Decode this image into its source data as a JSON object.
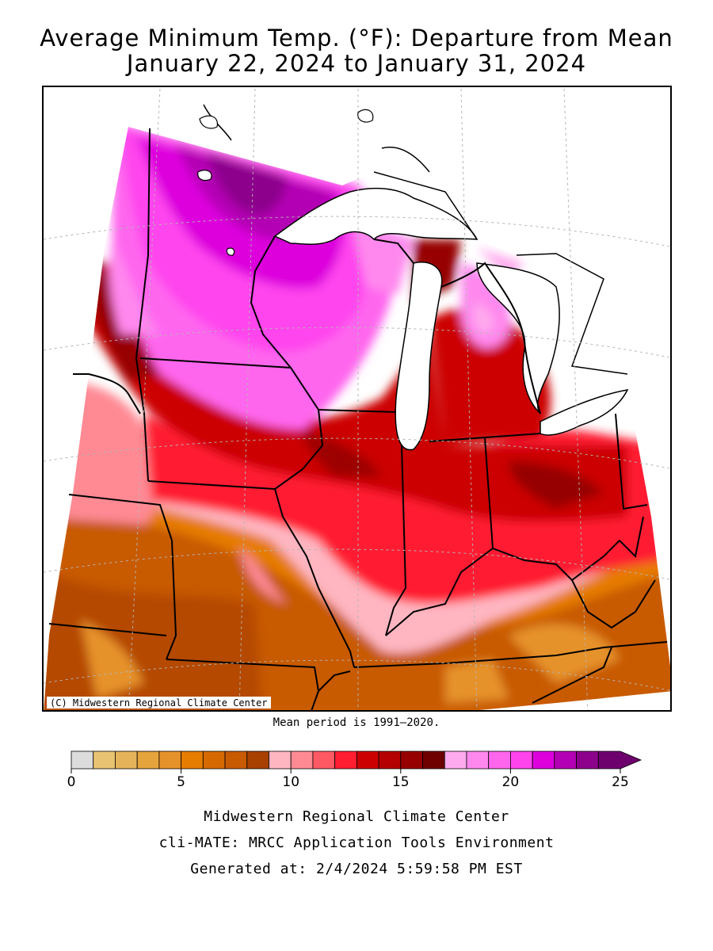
{
  "title": {
    "line1": "Average Minimum Temp. (°F): Departure from Mean",
    "line2": "January 22, 2024 to January 31, 2024"
  },
  "map": {
    "copyright": "(C) Midwestern Regional Climate Center",
    "region_colors": {
      "land_background": "#ffffff",
      "lakes": "#ffffff",
      "boundaries": "#000000"
    }
  },
  "mean_period": "Mean period is 1991–2020.",
  "legend": {
    "tick_labels": [
      "0",
      "5",
      "10",
      "15",
      "20",
      "25"
    ],
    "tick_values": [
      0,
      5,
      10,
      15,
      20,
      25
    ],
    "min": 0,
    "max": 25,
    "step": 1,
    "arrow_at_max": true,
    "colors": [
      "#dcdcdc",
      "#e8c472",
      "#e5b45a",
      "#e6a43c",
      "#e6922a",
      "#e67c00",
      "#d66a00",
      "#c85a00",
      "#a84000",
      "#ffb6c1",
      "#ff8a94",
      "#ff5a64",
      "#ff1e32",
      "#cc0000",
      "#b40000",
      "#960000",
      "#6e0000",
      "#ffaaee",
      "#ff88ee",
      "#ff66ee",
      "#ff44ee",
      "#dd00dd",
      "#b400b4",
      "#8c008c",
      "#6e006e"
    ]
  },
  "credits": {
    "line1": "Midwestern Regional Climate Center",
    "line2": "cli-MATE: MRCC Application Tools Environment",
    "line3": "Generated at: 2/4/2024 5:59:58 PM EST"
  }
}
